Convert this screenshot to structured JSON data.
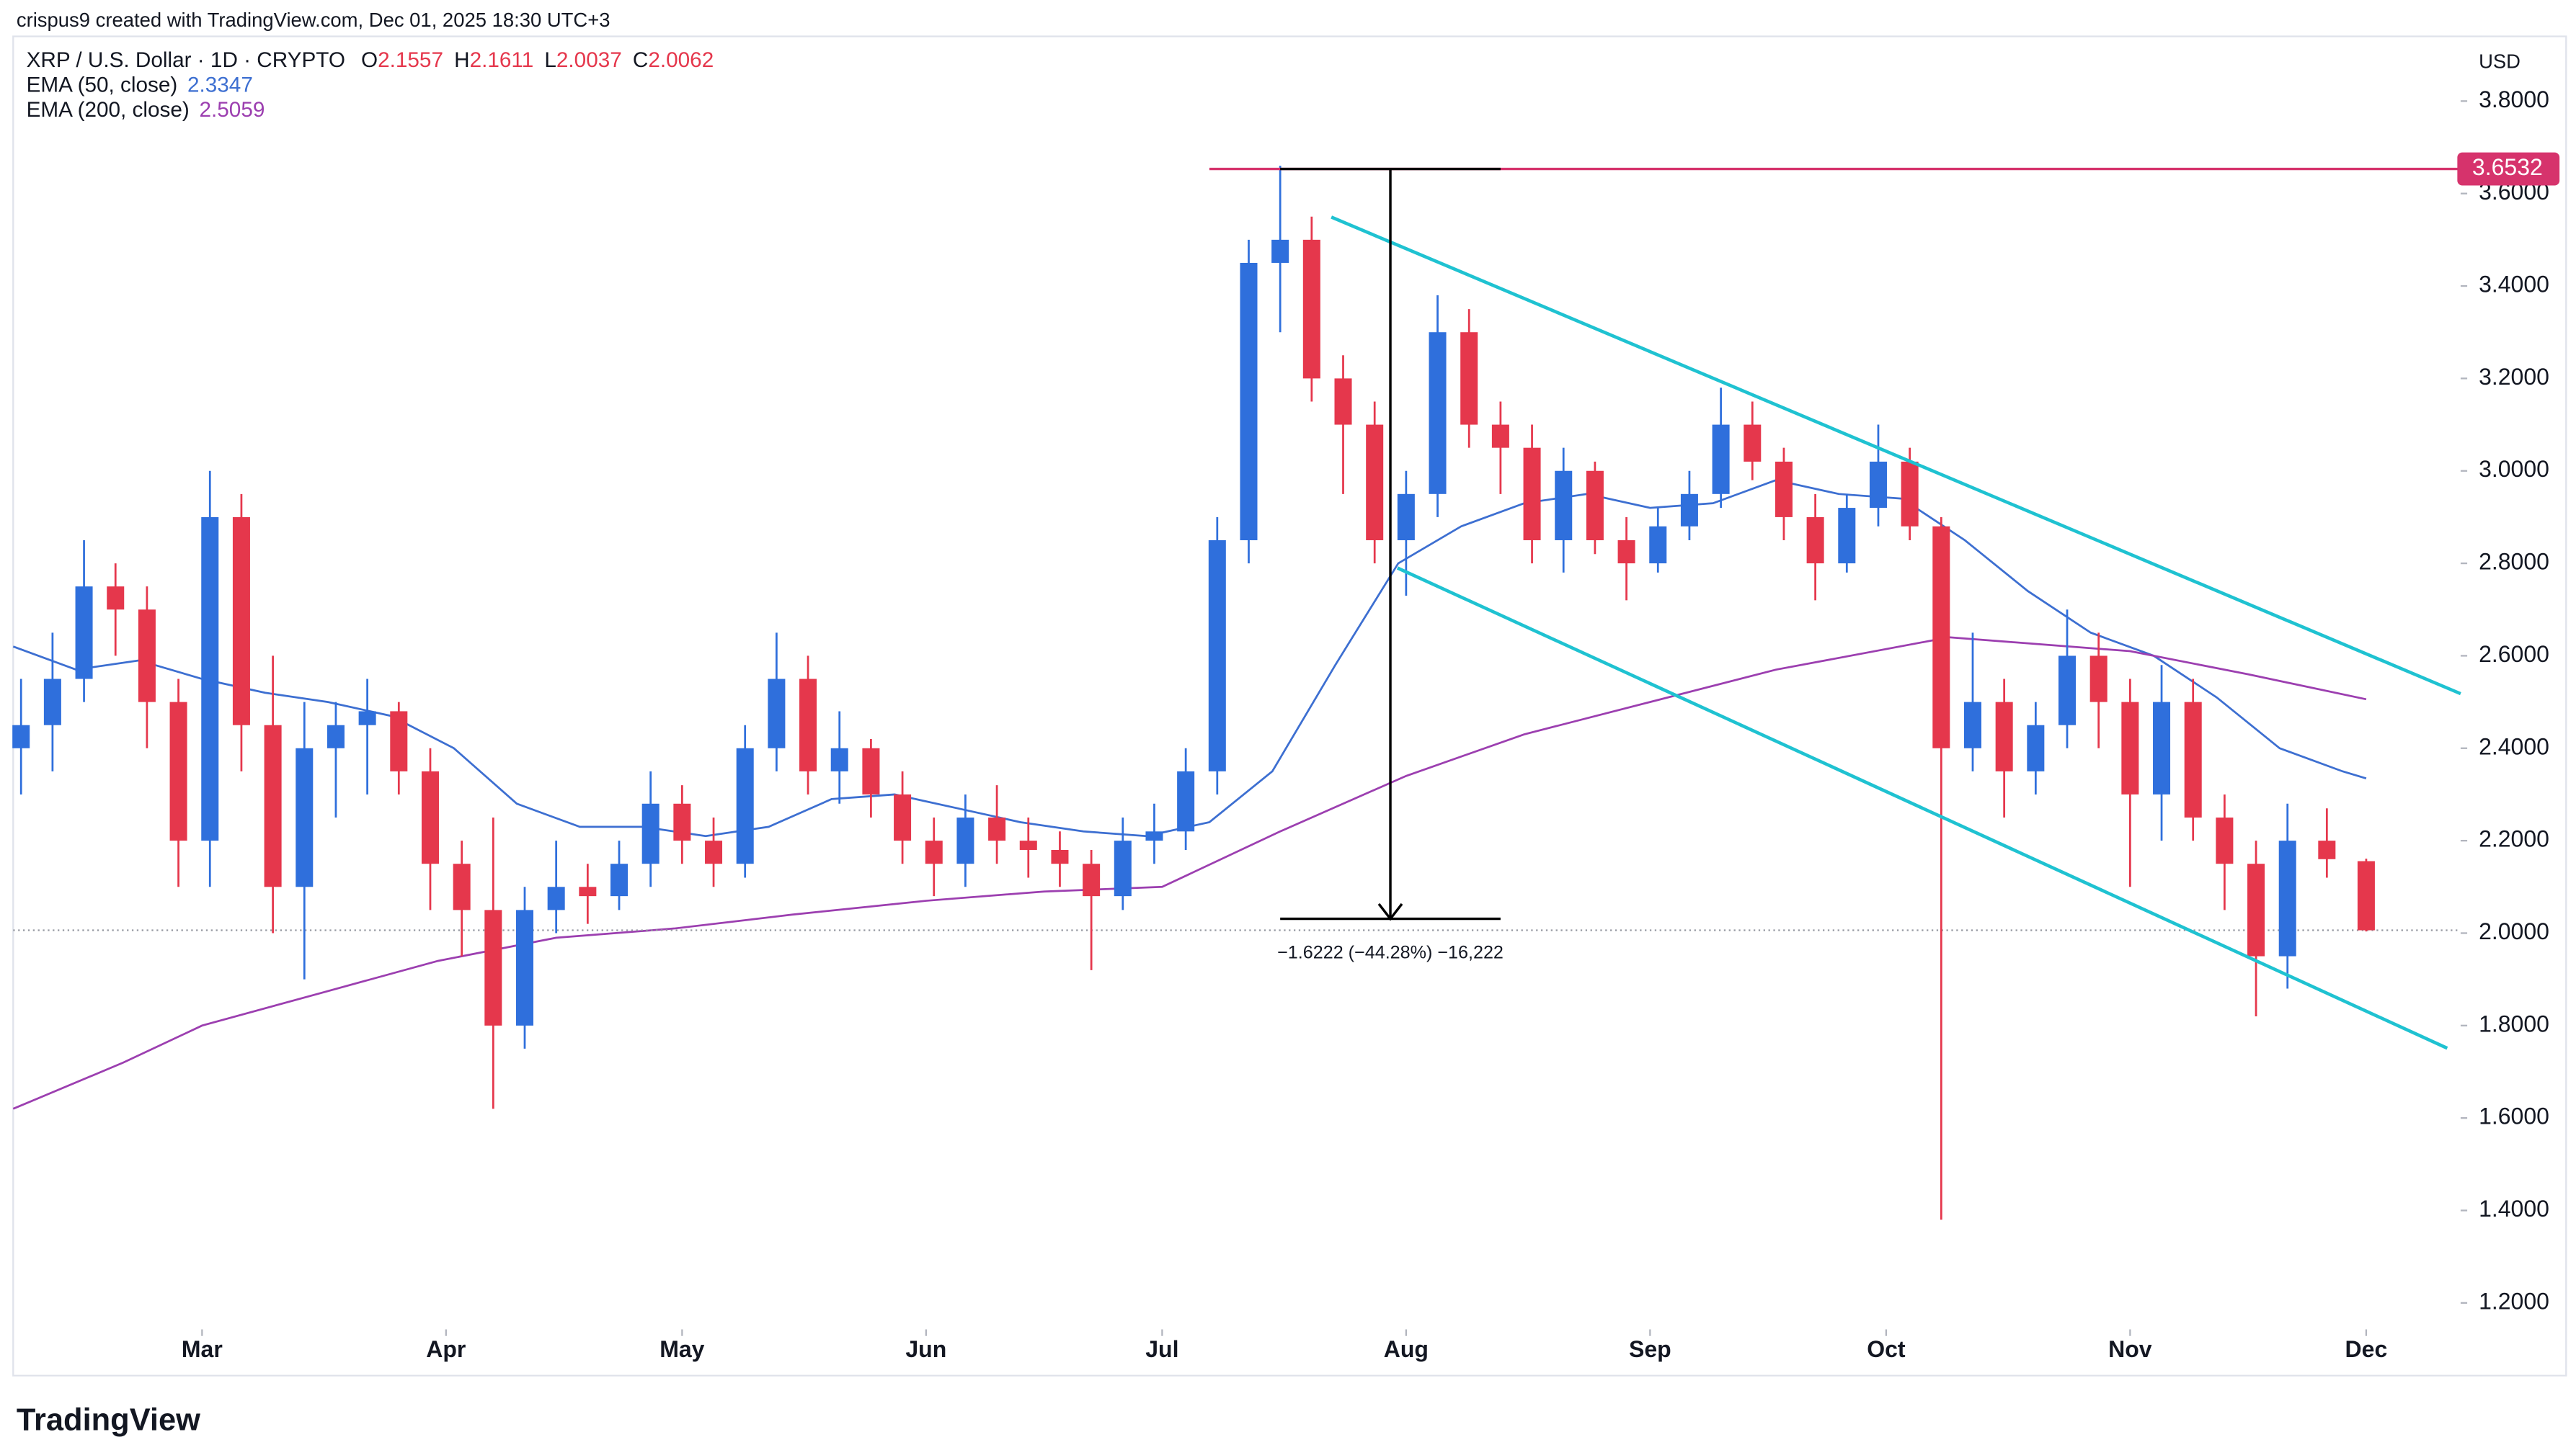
{
  "header": {
    "credit": "crispus9 created with TradingView.com, Dec 01, 2025 18:30 UTC+3",
    "logo": "TradingView"
  },
  "chart_data": {
    "type": "candlestick",
    "title": "XRP / U.S. Dollar · 1D · CRYPTO",
    "ohlc_labels": [
      "O",
      "H",
      "L",
      "C"
    ],
    "currency": "USD",
    "up_color": "#2f6fdc",
    "down_color": "#e5374c",
    "xlim": [
      -24,
      287
    ],
    "ylim": [
      1.15,
      3.94
    ],
    "xticks": [
      {
        "value": 0,
        "label": "Mar"
      },
      {
        "value": 31,
        "label": "Apr"
      },
      {
        "value": 61,
        "label": "May"
      },
      {
        "value": 92,
        "label": "Jun"
      },
      {
        "value": 122,
        "label": "Jul"
      },
      {
        "value": 153,
        "label": "Aug"
      },
      {
        "value": 184,
        "label": "Sep"
      },
      {
        "value": 214,
        "label": "Oct"
      },
      {
        "value": 245,
        "label": "Nov"
      },
      {
        "value": 275,
        "label": "Dec"
      }
    ],
    "yticks": [
      {
        "value": 1.2,
        "label": "1.2000"
      },
      {
        "value": 1.4,
        "label": "1.4000"
      },
      {
        "value": 1.6,
        "label": "1.6000"
      },
      {
        "value": 1.8,
        "label": "1.8000"
      },
      {
        "value": 2.0,
        "label": "2.0000"
      },
      {
        "value": 2.2,
        "label": "2.2000"
      },
      {
        "value": 2.4,
        "label": "2.4000"
      },
      {
        "value": 2.6,
        "label": "2.6000"
      },
      {
        "value": 2.8,
        "label": "2.8000"
      },
      {
        "value": 3.0,
        "label": "3.0000"
      },
      {
        "value": 3.2,
        "label": "3.2000"
      },
      {
        "value": 3.4,
        "label": "3.4000"
      },
      {
        "value": 3.6,
        "label": "3.6000"
      },
      {
        "value": 3.8,
        "label": "3.8000"
      }
    ],
    "candles": {
      "x": [
        -23,
        -19,
        -15,
        -11,
        -7,
        -3,
        1,
        5,
        9,
        13,
        17,
        21,
        25,
        29,
        33,
        37,
        41,
        45,
        49,
        53,
        57,
        61,
        65,
        69,
        73,
        77,
        81,
        85,
        89,
        93,
        97,
        101,
        105,
        109,
        113,
        117,
        121,
        125,
        129,
        133,
        137,
        141,
        145,
        149,
        153,
        157,
        161,
        165,
        169,
        173,
        177,
        181,
        185,
        189,
        193,
        197,
        201,
        205,
        209,
        213,
        217,
        221,
        225,
        229,
        233,
        237,
        241,
        245,
        249,
        253,
        257,
        261,
        265,
        270,
        275
      ],
      "open": [
        2.4,
        2.45,
        2.55,
        2.75,
        2.7,
        2.5,
        2.2,
        2.9,
        2.45,
        2.1,
        2.4,
        2.45,
        2.48,
        2.35,
        2.15,
        2.05,
        1.8,
        2.05,
        2.1,
        2.08,
        2.15,
        2.28,
        2.2,
        2.15,
        2.4,
        2.55,
        2.35,
        2.4,
        2.3,
        2.2,
        2.15,
        2.25,
        2.2,
        2.18,
        2.15,
        2.08,
        2.2,
        2.22,
        2.35,
        2.85,
        3.45,
        3.5,
        3.2,
        3.1,
        2.85,
        2.95,
        3.3,
        3.1,
        3.05,
        2.85,
        3.0,
        2.85,
        2.8,
        2.88,
        2.95,
        3.1,
        3.02,
        2.9,
        2.8,
        2.92,
        3.02,
        2.88,
        2.4,
        2.5,
        2.35,
        2.45,
        2.6,
        2.5,
        2.3,
        2.5,
        2.25,
        2.15,
        1.95,
        2.2,
        2.1557
      ],
      "high": [
        2.55,
        2.65,
        2.85,
        2.8,
        2.75,
        2.55,
        3.0,
        2.95,
        2.6,
        2.5,
        2.5,
        2.55,
        2.5,
        2.4,
        2.2,
        2.25,
        2.1,
        2.2,
        2.15,
        2.2,
        2.35,
        2.32,
        2.25,
        2.45,
        2.65,
        2.6,
        2.48,
        2.42,
        2.35,
        2.25,
        2.3,
        2.32,
        2.25,
        2.22,
        2.18,
        2.25,
        2.28,
        2.4,
        2.9,
        3.5,
        3.66,
        3.55,
        3.25,
        3.15,
        3.0,
        3.38,
        3.35,
        3.15,
        3.1,
        3.05,
        3.02,
        2.9,
        2.92,
        3.0,
        3.18,
        3.15,
        3.05,
        2.95,
        2.95,
        3.1,
        3.05,
        2.9,
        2.65,
        2.55,
        2.5,
        2.7,
        2.65,
        2.55,
        2.58,
        2.55,
        2.3,
        2.2,
        2.28,
        2.27,
        2.1611
      ],
      "low": [
        2.3,
        2.35,
        2.5,
        2.6,
        2.4,
        2.1,
        2.1,
        2.35,
        2.0,
        1.9,
        2.25,
        2.3,
        2.3,
        2.05,
        1.95,
        1.62,
        1.75,
        2.0,
        2.02,
        2.05,
        2.1,
        2.15,
        2.1,
        2.12,
        2.35,
        2.3,
        2.28,
        2.25,
        2.15,
        2.08,
        2.1,
        2.15,
        2.12,
        2.1,
        1.92,
        2.05,
        2.15,
        2.18,
        2.3,
        2.8,
        3.3,
        3.15,
        2.95,
        2.8,
        2.73,
        2.9,
        3.05,
        2.95,
        2.8,
        2.78,
        2.82,
        2.72,
        2.78,
        2.85,
        2.92,
        2.98,
        2.85,
        2.72,
        2.78,
        2.88,
        2.85,
        1.38,
        2.35,
        2.25,
        2.3,
        2.4,
        2.4,
        2.1,
        2.2,
        2.2,
        2.05,
        1.82,
        1.88,
        2.12,
        2.0037
      ],
      "close": [
        2.45,
        2.55,
        2.75,
        2.7,
        2.5,
        2.2,
        2.9,
        2.45,
        2.1,
        2.4,
        2.45,
        2.48,
        2.35,
        2.15,
        2.05,
        1.8,
        2.05,
        2.1,
        2.08,
        2.15,
        2.28,
        2.2,
        2.15,
        2.4,
        2.55,
        2.35,
        2.4,
        2.3,
        2.2,
        2.15,
        2.25,
        2.2,
        2.18,
        2.15,
        2.08,
        2.2,
        2.22,
        2.35,
        2.85,
        3.45,
        3.5,
        3.2,
        3.1,
        2.85,
        2.95,
        3.3,
        3.1,
        3.05,
        2.85,
        3.0,
        2.85,
        2.8,
        2.88,
        2.95,
        3.1,
        3.02,
        2.9,
        2.8,
        2.92,
        3.02,
        2.88,
        2.4,
        2.5,
        2.35,
        2.45,
        2.6,
        2.5,
        2.3,
        2.5,
        2.25,
        2.15,
        1.95,
        2.2,
        2.16,
        2.0062
      ]
    },
    "series": [
      {
        "name": "EMA (50, close)",
        "color": "#3d6fd1",
        "x": [
          -24,
          -16,
          -8,
          0,
          8,
          16,
          24,
          32,
          40,
          48,
          56,
          64,
          72,
          80,
          88,
          96,
          104,
          112,
          120,
          128,
          136,
          144,
          152,
          160,
          168,
          176,
          184,
          192,
          200,
          208,
          216,
          224,
          232,
          240,
          248,
          256,
          264,
          272,
          275
        ],
        "values": [
          2.62,
          2.57,
          2.59,
          2.55,
          2.52,
          2.5,
          2.47,
          2.4,
          2.28,
          2.23,
          2.23,
          2.21,
          2.23,
          2.29,
          2.3,
          2.27,
          2.24,
          2.22,
          2.21,
          2.24,
          2.35,
          2.58,
          2.8,
          2.88,
          2.93,
          2.95,
          2.92,
          2.93,
          2.98,
          2.95,
          2.94,
          2.85,
          2.74,
          2.65,
          2.6,
          2.51,
          2.4,
          2.35,
          2.3347
        ]
      },
      {
        "name": "EMA (200, close)",
        "color": "#9c3fb0",
        "x": [
          -24,
          -10,
          0,
          15,
          30,
          45,
          60,
          75,
          92,
          107,
          122,
          137,
          153,
          168,
          184,
          200,
          222,
          245,
          260,
          275
        ],
        "values": [
          1.62,
          1.72,
          1.8,
          1.87,
          1.94,
          1.99,
          2.01,
          2.04,
          2.07,
          2.09,
          2.1,
          2.22,
          2.34,
          2.43,
          2.5,
          2.57,
          2.64,
          2.61,
          2.56,
          2.5059
        ]
      }
    ],
    "price_line": {
      "value": 3.6532,
      "from_x": 128,
      "color": "#d6336c"
    },
    "measure": {
      "start": 3.6532,
      "end": 2.031,
      "x": [
        137,
        165
      ],
      "label": "−1.6222 (−44.28%) −16,222"
    },
    "channel": {
      "color": "#1fc2d1",
      "upper": {
        "x": [
          143.5,
          287
        ],
        "values": [
          3.549,
          2.518
        ]
      },
      "lower": {
        "x": [
          151.9,
          285.3
        ],
        "values": [
          2.79,
          1.751
        ]
      }
    }
  }
}
